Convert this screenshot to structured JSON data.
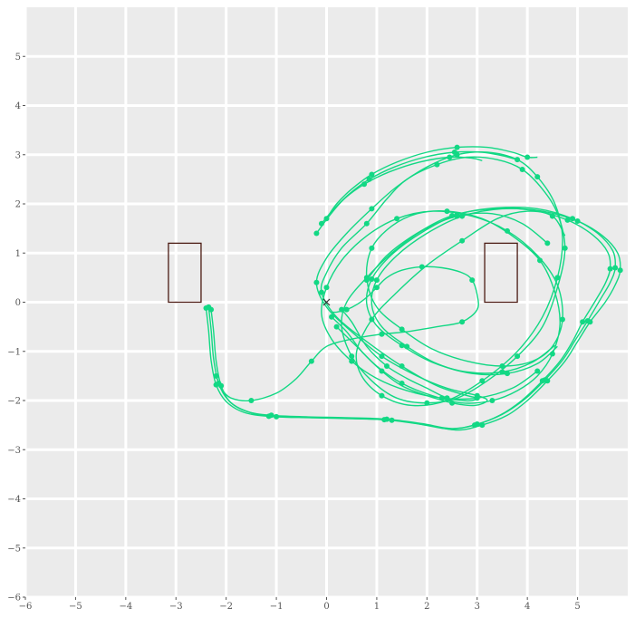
{
  "colors": {
    "panel": "#EBEBEB",
    "grid": "#FFFFFF",
    "trajectory": "#12D884",
    "rect": "#4A1A12",
    "origin_marker": "#333333",
    "tick_text": "#555555"
  },
  "chart_data": {
    "type": "line",
    "title": "",
    "xlabel": "",
    "ylabel": "",
    "xlim": [
      -6,
      6
    ],
    "ylim": [
      -6,
      6
    ],
    "xticks": [
      -6,
      -5,
      -4,
      -3,
      -2,
      -1,
      0,
      1,
      2,
      3,
      4,
      5
    ],
    "yticks": [
      -6,
      -5,
      -4,
      -3,
      -2,
      -1,
      0,
      1,
      2,
      3,
      4,
      5
    ],
    "grid": true,
    "legend": "none",
    "origin_marker": {
      "x": 0,
      "y": 0,
      "symbol": "x"
    },
    "rectangles": [
      {
        "x0": -3.15,
        "x1": -2.5,
        "y0": 0,
        "y1": 1.2
      },
      {
        "x0": 3.15,
        "x1": 3.8,
        "y0": 0,
        "y1": 1.2
      }
    ],
    "series": [
      {
        "x": [
          0.3,
          0.5,
          0.8,
          1.2,
          1.6,
          2.0,
          2.4,
          2.7,
          2.9,
          3.0,
          2.8,
          2.2,
          1.5,
          0.8,
          0.2,
          -0.1,
          0.0,
          0.3,
          0.8,
          1.2,
          1.6,
          2.2,
          2.8,
          3.4,
          3.9,
          4.3,
          4.6,
          4.75,
          4.6,
          4.3,
          3.8,
          3.2,
          2.6,
          2.0,
          1.4,
          0.9,
          0.5,
          0.3,
          0.4,
          0.8,
          1.3,
          1.9,
          2.6,
          3.3,
          3.9,
          4.4
        ],
        "y": [
          -0.15,
          -0.4,
          -0.9,
          -1.3,
          -1.55,
          -1.75,
          -1.95,
          -2.0,
          -2.0,
          -1.95,
          -1.9,
          -1.7,
          -1.3,
          -0.8,
          -0.3,
          0.2,
          0.6,
          1.1,
          1.6,
          2.1,
          2.5,
          2.8,
          2.95,
          2.9,
          2.7,
          2.3,
          1.8,
          1.1,
          0.3,
          -0.5,
          -1.1,
          -1.6,
          -1.95,
          -2.05,
          -1.95,
          -1.6,
          -1.1,
          -0.5,
          0.0,
          0.5,
          1.0,
          1.45,
          1.75,
          1.8,
          1.6,
          1.2
        ]
      },
      {
        "x": [
          0.1,
          0.4,
          0.7,
          1.1,
          1.5,
          2.0,
          2.5,
          2.95,
          3.2,
          3.0,
          2.4,
          1.8,
          1.1,
          0.5,
          0.0,
          -0.2,
          0.0,
          0.4,
          0.9,
          1.4,
          2.0,
          2.6,
          3.2,
          3.8,
          4.2,
          4.55,
          4.7,
          4.6,
          4.3,
          3.8,
          3.1,
          2.4,
          1.7,
          1.1,
          0.7,
          0.6,
          0.9,
          1.4,
          2.0,
          2.7,
          3.4,
          4.0,
          4.5,
          4.75
        ],
        "y": [
          -0.3,
          -0.6,
          -1.0,
          -1.4,
          -1.7,
          -1.9,
          -2.05,
          -2.1,
          -2.0,
          -1.9,
          -1.75,
          -1.5,
          -1.1,
          -0.6,
          -0.1,
          0.4,
          0.9,
          1.4,
          1.9,
          2.35,
          2.75,
          3.0,
          3.05,
          2.9,
          2.55,
          2.0,
          1.3,
          0.5,
          -0.3,
          -1.0,
          -1.6,
          -2.0,
          -2.1,
          -1.9,
          -1.5,
          -1.0,
          -0.35,
          0.2,
          0.75,
          1.25,
          1.7,
          1.85,
          1.75,
          1.35
        ]
      },
      {
        "x": [
          0.2,
          0.6,
          1.0,
          1.5,
          2.1,
          2.7,
          3.3,
          3.8,
          4.2,
          4.5,
          4.65,
          4.55,
          4.25,
          3.7,
          3.1,
          2.4,
          1.8,
          1.3,
          0.9,
          0.8,
          1.0,
          1.5,
          2.1,
          2.8,
          3.5,
          4.1,
          4.5,
          4.7,
          4.6,
          4.2,
          3.6,
          2.9,
          2.1,
          1.4,
          0.8,
          0.3,
          0.0,
          -0.1,
          0.1,
          0.5,
          1.0,
          1.6,
          2.3,
          3.0,
          3.7,
          4.2
        ],
        "y": [
          -0.5,
          -0.9,
          -1.3,
          -1.65,
          -1.9,
          -2.05,
          -2.0,
          -1.8,
          -1.5,
          -1.05,
          -0.45,
          0.2,
          0.85,
          1.35,
          1.7,
          1.85,
          1.8,
          1.55,
          1.1,
          0.5,
          -0.1,
          -0.55,
          -0.95,
          -1.2,
          -1.3,
          -1.2,
          -0.9,
          -0.35,
          0.35,
          0.95,
          1.45,
          1.75,
          1.85,
          1.7,
          1.35,
          0.85,
          0.3,
          -0.25,
          -0.75,
          -1.2,
          -1.55,
          -1.8,
          -1.95,
          -1.95,
          -1.75,
          -1.4
        ]
      },
      {
        "x": [
          -2.3,
          -2.25,
          -2.2,
          -2.1,
          -1.9,
          -1.5,
          -1.0,
          -0.3,
          0.5,
          1.3,
          2.0,
          2.6,
          3.1,
          3.6,
          4.0,
          4.4,
          4.75,
          5.0,
          5.25,
          5.55,
          5.75,
          5.85,
          5.8,
          5.5,
          5.0,
          4.3,
          3.5,
          2.7,
          2.0,
          1.4,
          1.0,
          0.9,
          1.1,
          1.6,
          2.2,
          2.9,
          3.6,
          4.2,
          4.6
        ],
        "y": [
          -0.15,
          -0.6,
          -1.2,
          -1.7,
          -2.05,
          -2.25,
          -2.33,
          -2.35,
          -2.37,
          -2.4,
          -2.5,
          -2.6,
          -2.5,
          -2.3,
          -2.0,
          -1.6,
          -1.2,
          -0.8,
          -0.4,
          0.0,
          0.35,
          0.65,
          1.0,
          1.35,
          1.65,
          1.85,
          1.9,
          1.75,
          1.4,
          0.95,
          0.45,
          -0.05,
          -0.5,
          -0.9,
          -1.25,
          -1.45,
          -1.45,
          -1.25,
          -0.9
        ]
      },
      {
        "x": [
          -2.35,
          -2.3,
          -2.25,
          -2.15,
          -1.95,
          -1.6,
          -1.1,
          -0.4,
          0.4,
          1.2,
          1.9,
          2.5,
          3.0,
          3.5,
          3.95,
          4.35,
          4.7,
          4.95,
          5.2,
          5.45,
          5.65,
          5.75,
          5.7,
          5.4,
          4.9,
          4.2,
          3.4,
          2.6,
          1.9,
          1.3,
          0.9,
          0.8,
          1.0,
          1.5,
          2.1,
          2.8,
          3.5,
          4.1,
          4.55
        ],
        "y": [
          -0.1,
          -0.55,
          -1.15,
          -1.65,
          -2.0,
          -2.22,
          -2.3,
          -2.33,
          -2.35,
          -2.38,
          -2.47,
          -2.57,
          -2.48,
          -2.28,
          -1.97,
          -1.58,
          -1.18,
          -0.78,
          -0.38,
          0.05,
          0.4,
          0.7,
          1.05,
          1.4,
          1.7,
          1.9,
          1.92,
          1.78,
          1.42,
          0.97,
          0.47,
          -0.03,
          -0.48,
          -0.88,
          -1.22,
          -1.42,
          -1.42,
          -1.22,
          -0.88
        ]
      },
      {
        "x": [
          -2.4,
          -2.35,
          -2.3,
          -2.2,
          -2.0,
          -1.65,
          -1.15,
          -0.45,
          0.35,
          1.15,
          1.85,
          2.45,
          2.95,
          3.45,
          3.9,
          4.3,
          4.65,
          4.9,
          5.1,
          5.35,
          5.55,
          5.65,
          5.6,
          5.3,
          4.8,
          4.1,
          3.3,
          2.5,
          1.8,
          1.2,
          0.8
        ],
        "y": [
          -0.12,
          -0.58,
          -1.18,
          -1.68,
          -2.02,
          -2.24,
          -2.32,
          -2.34,
          -2.36,
          -2.39,
          -2.48,
          -2.58,
          -2.5,
          -2.3,
          -1.99,
          -1.6,
          -1.2,
          -0.8,
          -0.4,
          0.02,
          0.38,
          0.68,
          1.02,
          1.37,
          1.67,
          1.87,
          1.9,
          1.76,
          1.4,
          0.95,
          0.45
        ]
      },
      {
        "x": [
          -2.2,
          -2.1,
          -1.9,
          -1.5,
          -1.0,
          -0.6,
          -0.3,
          0.0,
          0.5,
          1.1,
          1.6,
          2.2,
          2.7,
          3.0,
          3.0,
          2.9,
          2.7,
          2.3,
          1.9,
          1.5,
          1.2,
          1.0,
          0.8,
          0.6,
          0.4,
          0.2,
          0.1
        ],
        "y": [
          -1.5,
          -1.75,
          -1.95,
          -2.0,
          -1.85,
          -1.55,
          -1.2,
          -0.9,
          -0.75,
          -0.65,
          -0.6,
          -0.5,
          -0.4,
          -0.15,
          0.15,
          0.45,
          0.6,
          0.7,
          0.72,
          0.65,
          0.5,
          0.3,
          0.1,
          -0.05,
          -0.15,
          -0.2,
          -0.2
        ]
      },
      {
        "x": [
          0.0,
          0.2,
          0.5,
          0.9,
          1.4,
          2.0,
          2.6,
          3.2,
          3.7,
          4.0,
          4.2
        ],
        "y": [
          1.7,
          2.0,
          2.3,
          2.6,
          2.85,
          3.05,
          3.15,
          3.15,
          3.05,
          2.95,
          2.95
        ]
      },
      {
        "x": [
          -0.1,
          0.15,
          0.45,
          0.85,
          1.35,
          1.95,
          2.55,
          3.1,
          3.5,
          3.8
        ],
        "y": [
          1.6,
          1.9,
          2.2,
          2.5,
          2.75,
          2.95,
          3.05,
          3.05,
          2.98,
          2.9
        ]
      },
      {
        "x": [
          -0.2,
          0.05,
          0.35,
          0.75,
          1.25,
          1.85,
          2.45,
          2.9,
          3.1
        ],
        "y": [
          1.4,
          1.75,
          2.1,
          2.4,
          2.65,
          2.85,
          2.95,
          2.93,
          2.88
        ]
      }
    ]
  }
}
